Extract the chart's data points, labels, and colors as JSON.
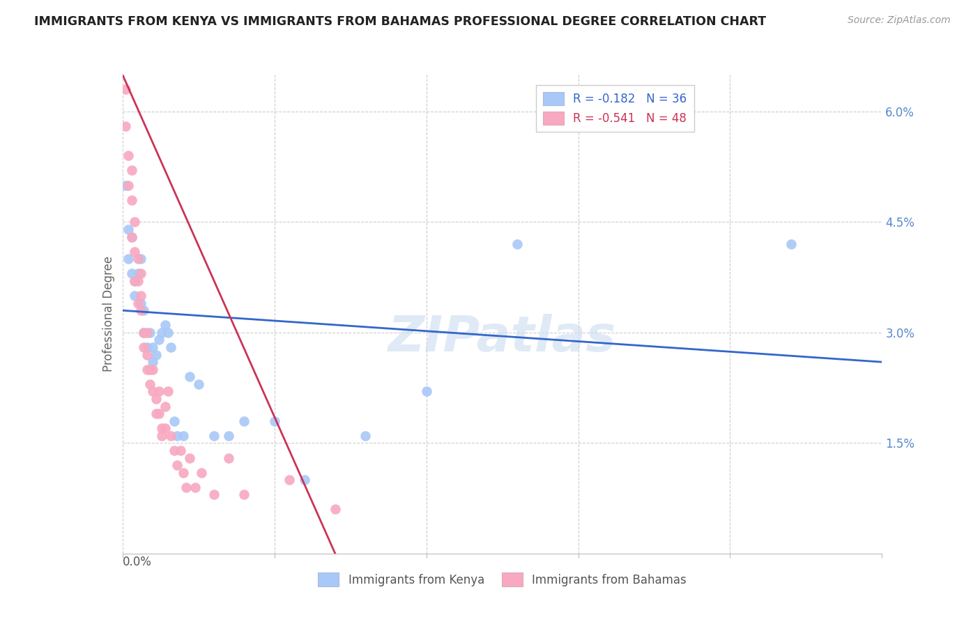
{
  "title": "IMMIGRANTS FROM KENYA VS IMMIGRANTS FROM BAHAMAS PROFESSIONAL DEGREE CORRELATION CHART",
  "source": "Source: ZipAtlas.com",
  "ylabel": "Professional Degree",
  "xlim": [
    0.0,
    0.25
  ],
  "ylim": [
    0.0,
    0.065
  ],
  "yticks": [
    0.015,
    0.03,
    0.045,
    0.06
  ],
  "ytick_labels": [
    "1.5%",
    "3.0%",
    "4.5%",
    "6.0%"
  ],
  "xticks": [
    0.0,
    0.05,
    0.1,
    0.15,
    0.2,
    0.25
  ],
  "kenya_R": -0.182,
  "kenya_N": 36,
  "bahamas_R": -0.541,
  "bahamas_N": 48,
  "kenya_color": "#a8c8f8",
  "bahamas_color": "#f8a8c0",
  "kenya_line_color": "#3366cc",
  "bahamas_line_color": "#cc3355",
  "kenya_x": [
    0.001,
    0.002,
    0.002,
    0.003,
    0.003,
    0.004,
    0.004,
    0.005,
    0.006,
    0.006,
    0.007,
    0.007,
    0.008,
    0.009,
    0.01,
    0.01,
    0.011,
    0.012,
    0.013,
    0.014,
    0.015,
    0.016,
    0.017,
    0.018,
    0.02,
    0.022,
    0.025,
    0.03,
    0.035,
    0.04,
    0.05,
    0.06,
    0.08,
    0.1,
    0.13,
    0.22
  ],
  "kenya_y": [
    0.05,
    0.044,
    0.04,
    0.043,
    0.038,
    0.037,
    0.035,
    0.038,
    0.034,
    0.04,
    0.033,
    0.03,
    0.028,
    0.03,
    0.028,
    0.026,
    0.027,
    0.029,
    0.03,
    0.031,
    0.03,
    0.028,
    0.018,
    0.016,
    0.016,
    0.024,
    0.023,
    0.016,
    0.016,
    0.018,
    0.018,
    0.01,
    0.016,
    0.022,
    0.042,
    0.042
  ],
  "bahamas_x": [
    0.001,
    0.001,
    0.002,
    0.002,
    0.003,
    0.003,
    0.003,
    0.004,
    0.004,
    0.004,
    0.005,
    0.005,
    0.005,
    0.006,
    0.006,
    0.006,
    0.007,
    0.007,
    0.008,
    0.008,
    0.008,
    0.009,
    0.009,
    0.01,
    0.01,
    0.011,
    0.011,
    0.012,
    0.012,
    0.013,
    0.013,
    0.014,
    0.014,
    0.015,
    0.016,
    0.017,
    0.018,
    0.019,
    0.02,
    0.021,
    0.022,
    0.024,
    0.026,
    0.03,
    0.035,
    0.04,
    0.055,
    0.07
  ],
  "bahamas_y": [
    0.063,
    0.058,
    0.054,
    0.05,
    0.052,
    0.048,
    0.043,
    0.045,
    0.041,
    0.037,
    0.04,
    0.037,
    0.034,
    0.038,
    0.035,
    0.033,
    0.03,
    0.028,
    0.03,
    0.027,
    0.025,
    0.025,
    0.023,
    0.025,
    0.022,
    0.021,
    0.019,
    0.022,
    0.019,
    0.017,
    0.016,
    0.02,
    0.017,
    0.022,
    0.016,
    0.014,
    0.012,
    0.014,
    0.011,
    0.009,
    0.013,
    0.009,
    0.011,
    0.008,
    0.013,
    0.008,
    0.01,
    0.006
  ],
  "watermark": "ZIPatlas",
  "background_color": "#ffffff",
  "grid_color": "#cccccc",
  "kenya_line_start_x": 0.0,
  "kenya_line_start_y": 0.033,
  "kenya_line_end_x": 0.25,
  "kenya_line_end_y": 0.026,
  "bahamas_line_start_x": 0.0,
  "bahamas_line_start_y": 0.065,
  "bahamas_line_end_x": 0.07,
  "bahamas_line_end_y": 0.0
}
